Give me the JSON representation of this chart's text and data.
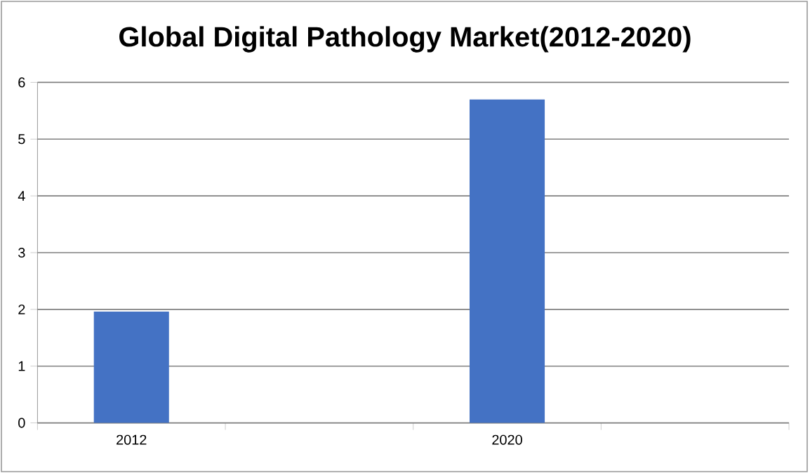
{
  "chart_data": {
    "type": "bar",
    "title": "Global Digital Pathology Market(2012-2020)",
    "categories": [
      "2012",
      null,
      "2020",
      null
    ],
    "values": [
      1.96,
      null,
      5.7,
      null
    ],
    "color": "#4472c4",
    "ylim": [
      0,
      6
    ],
    "yticks": [
      0,
      1,
      2,
      3,
      4,
      5,
      6
    ],
    "grid": "y"
  }
}
